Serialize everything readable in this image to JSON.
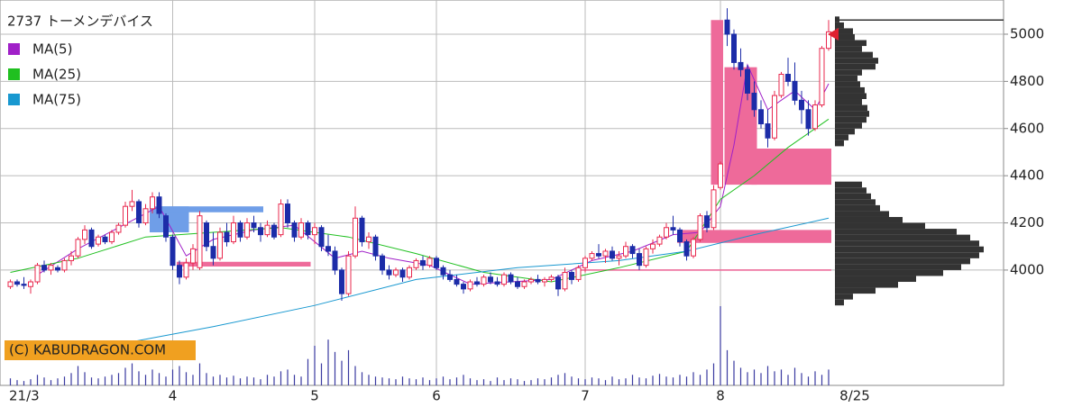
{
  "chart_data": {
    "type": "candlestick",
    "title": "2737 トーメンデバイス",
    "watermark": "(C) KABUDRAGON.COM",
    "categories": [
      "21/3",
      null,
      null,
      null,
      null,
      null,
      null,
      null,
      null,
      null,
      null,
      null,
      null,
      null,
      null,
      null,
      null,
      null,
      null,
      null,
      null,
      null,
      null,
      null,
      "4",
      null,
      null,
      null,
      null,
      null,
      null,
      null,
      null,
      null,
      null,
      null,
      null,
      null,
      null,
      null,
      null,
      null,
      null,
      null,
      null,
      "5",
      null,
      null,
      null,
      null,
      null,
      null,
      null,
      null,
      null,
      null,
      null,
      null,
      null,
      null,
      null,
      null,
      null,
      "6",
      null,
      null,
      null,
      null,
      null,
      null,
      null,
      null,
      null,
      null,
      null,
      null,
      null,
      null,
      null,
      null,
      null,
      null,
      null,
      null,
      null,
      "7",
      null,
      null,
      null,
      null,
      null,
      null,
      null,
      null,
      null,
      null,
      null,
      null,
      null,
      null,
      null,
      null,
      null,
      null,
      null,
      "8",
      null,
      null,
      null,
      null,
      null,
      null,
      null,
      null,
      null,
      null,
      null,
      null,
      null,
      null,
      null,
      null
    ],
    "last_date_label": "8/25",
    "up_color": "#e8284e",
    "down_color": "#1c2ca8",
    "ohlc": [
      [
        3930,
        3960,
        3920,
        3950
      ],
      [
        3950,
        3960,
        3930,
        3940
      ],
      [
        3940,
        3970,
        3920,
        3935
      ],
      [
        3930,
        3960,
        3900,
        3950
      ],
      [
        3950,
        4030,
        3940,
        4020
      ],
      [
        4020,
        4040,
        3990,
        4000
      ],
      [
        4000,
        4030,
        3980,
        4020
      ],
      [
        4010,
        4020,
        3990,
        4000
      ],
      [
        4000,
        4050,
        3990,
        4040
      ],
      [
        4040,
        4080,
        4020,
        4060
      ],
      [
        4060,
        4140,
        4050,
        4130
      ],
      [
        4130,
        4190,
        4110,
        4170
      ],
      [
        4170,
        4180,
        4090,
        4100
      ],
      [
        4110,
        4150,
        4100,
        4140
      ],
      [
        4140,
        4150,
        4110,
        4120
      ],
      [
        4120,
        4170,
        4110,
        4160
      ],
      [
        4160,
        4200,
        4150,
        4190
      ],
      [
        4190,
        4290,
        4180,
        4270
      ],
      [
        4270,
        4340,
        4250,
        4290
      ],
      [
        4290,
        4300,
        4180,
        4200
      ],
      [
        4200,
        4280,
        4190,
        4260
      ],
      [
        4260,
        4330,
        4240,
        4310
      ],
      [
        4310,
        4330,
        4220,
        4240
      ],
      [
        4230,
        4240,
        4120,
        4140
      ],
      [
        4140,
        4150,
        4000,
        4020
      ],
      [
        4020,
        4040,
        3940,
        3970
      ],
      [
        3970,
        4050,
        3960,
        4030
      ],
      [
        4030,
        4110,
        4000,
        4090
      ],
      [
        4010,
        4250,
        4000,
        4230
      ],
      [
        4200,
        4210,
        4080,
        4100
      ],
      [
        4100,
        4160,
        4020,
        4050
      ],
      [
        4050,
        4180,
        4040,
        4160
      ],
      [
        4160,
        4200,
        4100,
        4120
      ],
      [
        4120,
        4230,
        4110,
        4200
      ],
      [
        4200,
        4210,
        4120,
        4140
      ],
      [
        4140,
        4220,
        4130,
        4200
      ],
      [
        4200,
        4230,
        4160,
        4180
      ],
      [
        4180,
        4200,
        4120,
        4150
      ],
      [
        4150,
        4210,
        4140,
        4190
      ],
      [
        4190,
        4200,
        4130,
        4140
      ],
      [
        4150,
        4300,
        4140,
        4280
      ],
      [
        4280,
        4300,
        4180,
        4200
      ],
      [
        4200,
        4210,
        4120,
        4140
      ],
      [
        4140,
        4220,
        4130,
        4200
      ],
      [
        4200,
        4210,
        4130,
        4150
      ],
      [
        4150,
        4200,
        4110,
        4180
      ],
      [
        4180,
        4190,
        4080,
        4100
      ],
      [
        4100,
        4150,
        4060,
        4080
      ],
      [
        4080,
        4100,
        3980,
        4000
      ],
      [
        4000,
        4010,
        3870,
        3900
      ],
      [
        3900,
        4080,
        3890,
        4060
      ],
      [
        4060,
        4270,
        4050,
        4220
      ],
      [
        4220,
        4230,
        4100,
        4120
      ],
      [
        4120,
        4160,
        4090,
        4140
      ],
      [
        4140,
        4150,
        4040,
        4060
      ],
      [
        4060,
        4070,
        3980,
        4000
      ],
      [
        4000,
        4020,
        3960,
        3980
      ],
      [
        3980,
        4010,
        3970,
        4000
      ],
      [
        4000,
        4010,
        3950,
        3970
      ],
      [
        3970,
        4020,
        3960,
        4010
      ],
      [
        4010,
        4050,
        4000,
        4040
      ],
      [
        4040,
        4060,
        4000,
        4020
      ],
      [
        4020,
        4060,
        4010,
        4050
      ],
      [
        4050,
        4060,
        4000,
        4010
      ],
      [
        4010,
        4020,
        3960,
        3980
      ],
      [
        3980,
        4000,
        3950,
        3960
      ],
      [
        3960,
        3980,
        3930,
        3940
      ],
      [
        3940,
        3950,
        3900,
        3920
      ],
      [
        3920,
        3960,
        3910,
        3950
      ],
      [
        3950,
        3970,
        3930,
        3940
      ],
      [
        3940,
        3980,
        3930,
        3970
      ],
      [
        3970,
        3990,
        3940,
        3950
      ],
      [
        3950,
        3970,
        3930,
        3940
      ],
      [
        3940,
        3990,
        3930,
        3980
      ],
      [
        3980,
        3990,
        3940,
        3950
      ],
      [
        3950,
        3970,
        3920,
        3930
      ],
      [
        3930,
        3960,
        3920,
        3950
      ],
      [
        3950,
        3970,
        3940,
        3960
      ],
      [
        3960,
        3980,
        3940,
        3950
      ],
      [
        3950,
        3970,
        3930,
        3960
      ],
      [
        3960,
        3980,
        3950,
        3970
      ],
      [
        3970,
        3980,
        3890,
        3920
      ],
      [
        3920,
        4010,
        3910,
        3990
      ],
      [
        3990,
        4000,
        3940,
        3960
      ],
      [
        3960,
        4020,
        3950,
        4010
      ],
      [
        4010,
        4060,
        3990,
        4050
      ],
      [
        4050,
        4080,
        4040,
        4070
      ],
      [
        4070,
        4110,
        4050,
        4060
      ],
      [
        4060,
        4090,
        4030,
        4080
      ],
      [
        4080,
        4100,
        4040,
        4050
      ],
      [
        4050,
        4080,
        4020,
        4060
      ],
      [
        4060,
        4120,
        4050,
        4100
      ],
      [
        4100,
        4110,
        4050,
        4070
      ],
      [
        4070,
        4090,
        4000,
        4020
      ],
      [
        4020,
        4100,
        4010,
        4090
      ],
      [
        4090,
        4130,
        4070,
        4110
      ],
      [
        4110,
        4150,
        4100,
        4140
      ],
      [
        4140,
        4200,
        4130,
        4180
      ],
      [
        4180,
        4230,
        4150,
        4170
      ],
      [
        4170,
        4180,
        4100,
        4120
      ],
      [
        4120,
        4130,
        4040,
        4060
      ],
      [
        4060,
        4140,
        4050,
        4130
      ],
      [
        4130,
        4240,
        4120,
        4230
      ],
      [
        4230,
        4250,
        4160,
        4180
      ],
      [
        4180,
        4360,
        4170,
        4340
      ],
      [
        4350,
        4460,
        4340,
        4450
      ],
      [
        5060,
        5110,
        4950,
        5000
      ],
      [
        5000,
        5020,
        4850,
        4880
      ],
      [
        4880,
        4940,
        4820,
        4850
      ],
      [
        4850,
        4870,
        4720,
        4750
      ],
      [
        4750,
        4800,
        4650,
        4680
      ],
      [
        4680,
        4720,
        4600,
        4620
      ],
      [
        4620,
        4680,
        4520,
        4560
      ],
      [
        4560,
        4760,
        4550,
        4740
      ],
      [
        4740,
        4840,
        4730,
        4830
      ],
      [
        4830,
        4900,
        4780,
        4800
      ],
      [
        4800,
        4880,
        4700,
        4720
      ],
      [
        4720,
        4760,
        4620,
        4680
      ],
      [
        4680,
        4720,
        4570,
        4600
      ],
      [
        4600,
        4720,
        4590,
        4700
      ],
      [
        4700,
        4950,
        4690,
        4940
      ],
      [
        4940,
        5060,
        4930,
        5010
      ]
    ],
    "volume": [
      8,
      6,
      5,
      7,
      12,
      9,
      6,
      8,
      10,
      14,
      22,
      15,
      9,
      8,
      10,
      12,
      14,
      20,
      25,
      16,
      12,
      18,
      14,
      10,
      18,
      22,
      15,
      12,
      25,
      14,
      10,
      12,
      9,
      11,
      8,
      10,
      9,
      7,
      12,
      10,
      16,
      18,
      12,
      10,
      30,
      45,
      25,
      52,
      38,
      28,
      40,
      22,
      15,
      12,
      10,
      9,
      8,
      7,
      10,
      8,
      7,
      9,
      6,
      8,
      10,
      7,
      9,
      12,
      8,
      6,
      7,
      5,
      9,
      6,
      8,
      7,
      5,
      6,
      8,
      7,
      9,
      12,
      14,
      10,
      8,
      7,
      9,
      8,
      6,
      10,
      7,
      8,
      12,
      9,
      8,
      11,
      13,
      10,
      9,
      12,
      10,
      15,
      12,
      18,
      25,
      90,
      40,
      28,
      20,
      15,
      18,
      14,
      22,
      16,
      18,
      12,
      20,
      14,
      10,
      16,
      12,
      18
    ],
    "volume_color": "#3a3aa0",
    "series": [
      {
        "name": "MA(5)",
        "color": "#a020c8",
        "x": [
          4,
          10,
          16,
          22,
          26,
          30,
          36,
          42,
          48,
          52,
          56,
          62,
          68,
          74,
          80,
          86,
          92,
          98,
          102,
          105,
          107,
          109,
          112,
          116,
          119,
          121
        ],
        "values": [
          3980,
          4090,
          4180,
          4270,
          4060,
          4130,
          4170,
          4190,
          4050,
          4080,
          4050,
          4020,
          3940,
          3950,
          3960,
          4040,
          4080,
          4150,
          4160,
          4270,
          4530,
          4870,
          4680,
          4760,
          4680,
          4790
        ]
      },
      {
        "name": "MA(25)",
        "color": "#20c020",
        "x": [
          0,
          10,
          20,
          30,
          40,
          50,
          60,
          70,
          80,
          90,
          100,
          105,
          110,
          115,
          121
        ],
        "values": [
          3990,
          4050,
          4140,
          4160,
          4180,
          4140,
          4070,
          3990,
          3950,
          4010,
          4080,
          4300,
          4400,
          4520,
          4640
        ]
      },
      {
        "name": "MA(75)",
        "color": "#1898d0",
        "x": [
          0,
          15,
          30,
          45,
          60,
          75,
          90,
          100,
          110,
          121
        ],
        "values": [
          3620,
          3680,
          3760,
          3850,
          3960,
          4010,
          4040,
          4080,
          4150,
          4220
        ]
      }
    ],
    "zones": [
      {
        "start": 21,
        "end": 26,
        "low": 4160,
        "high": 4270,
        "color": "#6f9ee8"
      },
      {
        "start": 22,
        "end": 37,
        "low": 4245,
        "high": 4270,
        "color": "#6f9ee8"
      },
      {
        "start": 25,
        "end": 44,
        "low": 4015,
        "high": 4035,
        "color": "#ee6a9a"
      },
      {
        "start": 84,
        "end": 121,
        "low": 3997,
        "high": 4003,
        "color": "#ee6a9a"
      },
      {
        "start": 99,
        "end": 121,
        "low": 4115,
        "high": 4170,
        "color": "#ee6a9a"
      },
      {
        "start": 110,
        "end": 121,
        "low": 4362,
        "high": 4515,
        "color": "#ee6a9a"
      },
      {
        "start": 104,
        "end": 105,
        "low": 4362,
        "high": 5060,
        "color": "#ee6a9a"
      },
      {
        "start": 106,
        "end": 110,
        "low": 4362,
        "high": 4860,
        "color": "#ee6a9a"
      }
    ],
    "profile": {
      "color": "#333333",
      "bins": [
        3850,
        3875,
        3900,
        3925,
        3950,
        3975,
        4000,
        4025,
        4050,
        4075,
        4100,
        4125,
        4150,
        4175,
        4200,
        4225,
        4250,
        4275,
        4300,
        4325,
        4350,
        4375,
        4400,
        4425,
        4450,
        4475,
        4500,
        4525,
        4550,
        4575,
        4600,
        4625,
        4650,
        4675,
        4700,
        4725,
        4750,
        4775,
        4800,
        4825,
        4850,
        4875,
        4900,
        4925,
        4950,
        4975,
        5000,
        5025,
        5050,
        5075
      ],
      "values": [
        10,
        20,
        45,
        70,
        90,
        120,
        140,
        150,
        160,
        165,
        160,
        150,
        135,
        100,
        75,
        60,
        50,
        45,
        40,
        35,
        30,
        0,
        0,
        0,
        0,
        0,
        0,
        10,
        15,
        22,
        30,
        35,
        38,
        36,
        30,
        35,
        33,
        28,
        25,
        30,
        45,
        48,
        42,
        30,
        35,
        22,
        20,
        10,
        5
      ]
    },
    "price_marker": 5000,
    "high_line": 5060,
    "ylim": [
      3511,
      5145
    ],
    "yticks": [
      4000,
      4200,
      4400,
      4600,
      4800,
      5000
    ],
    "grid": true
  }
}
